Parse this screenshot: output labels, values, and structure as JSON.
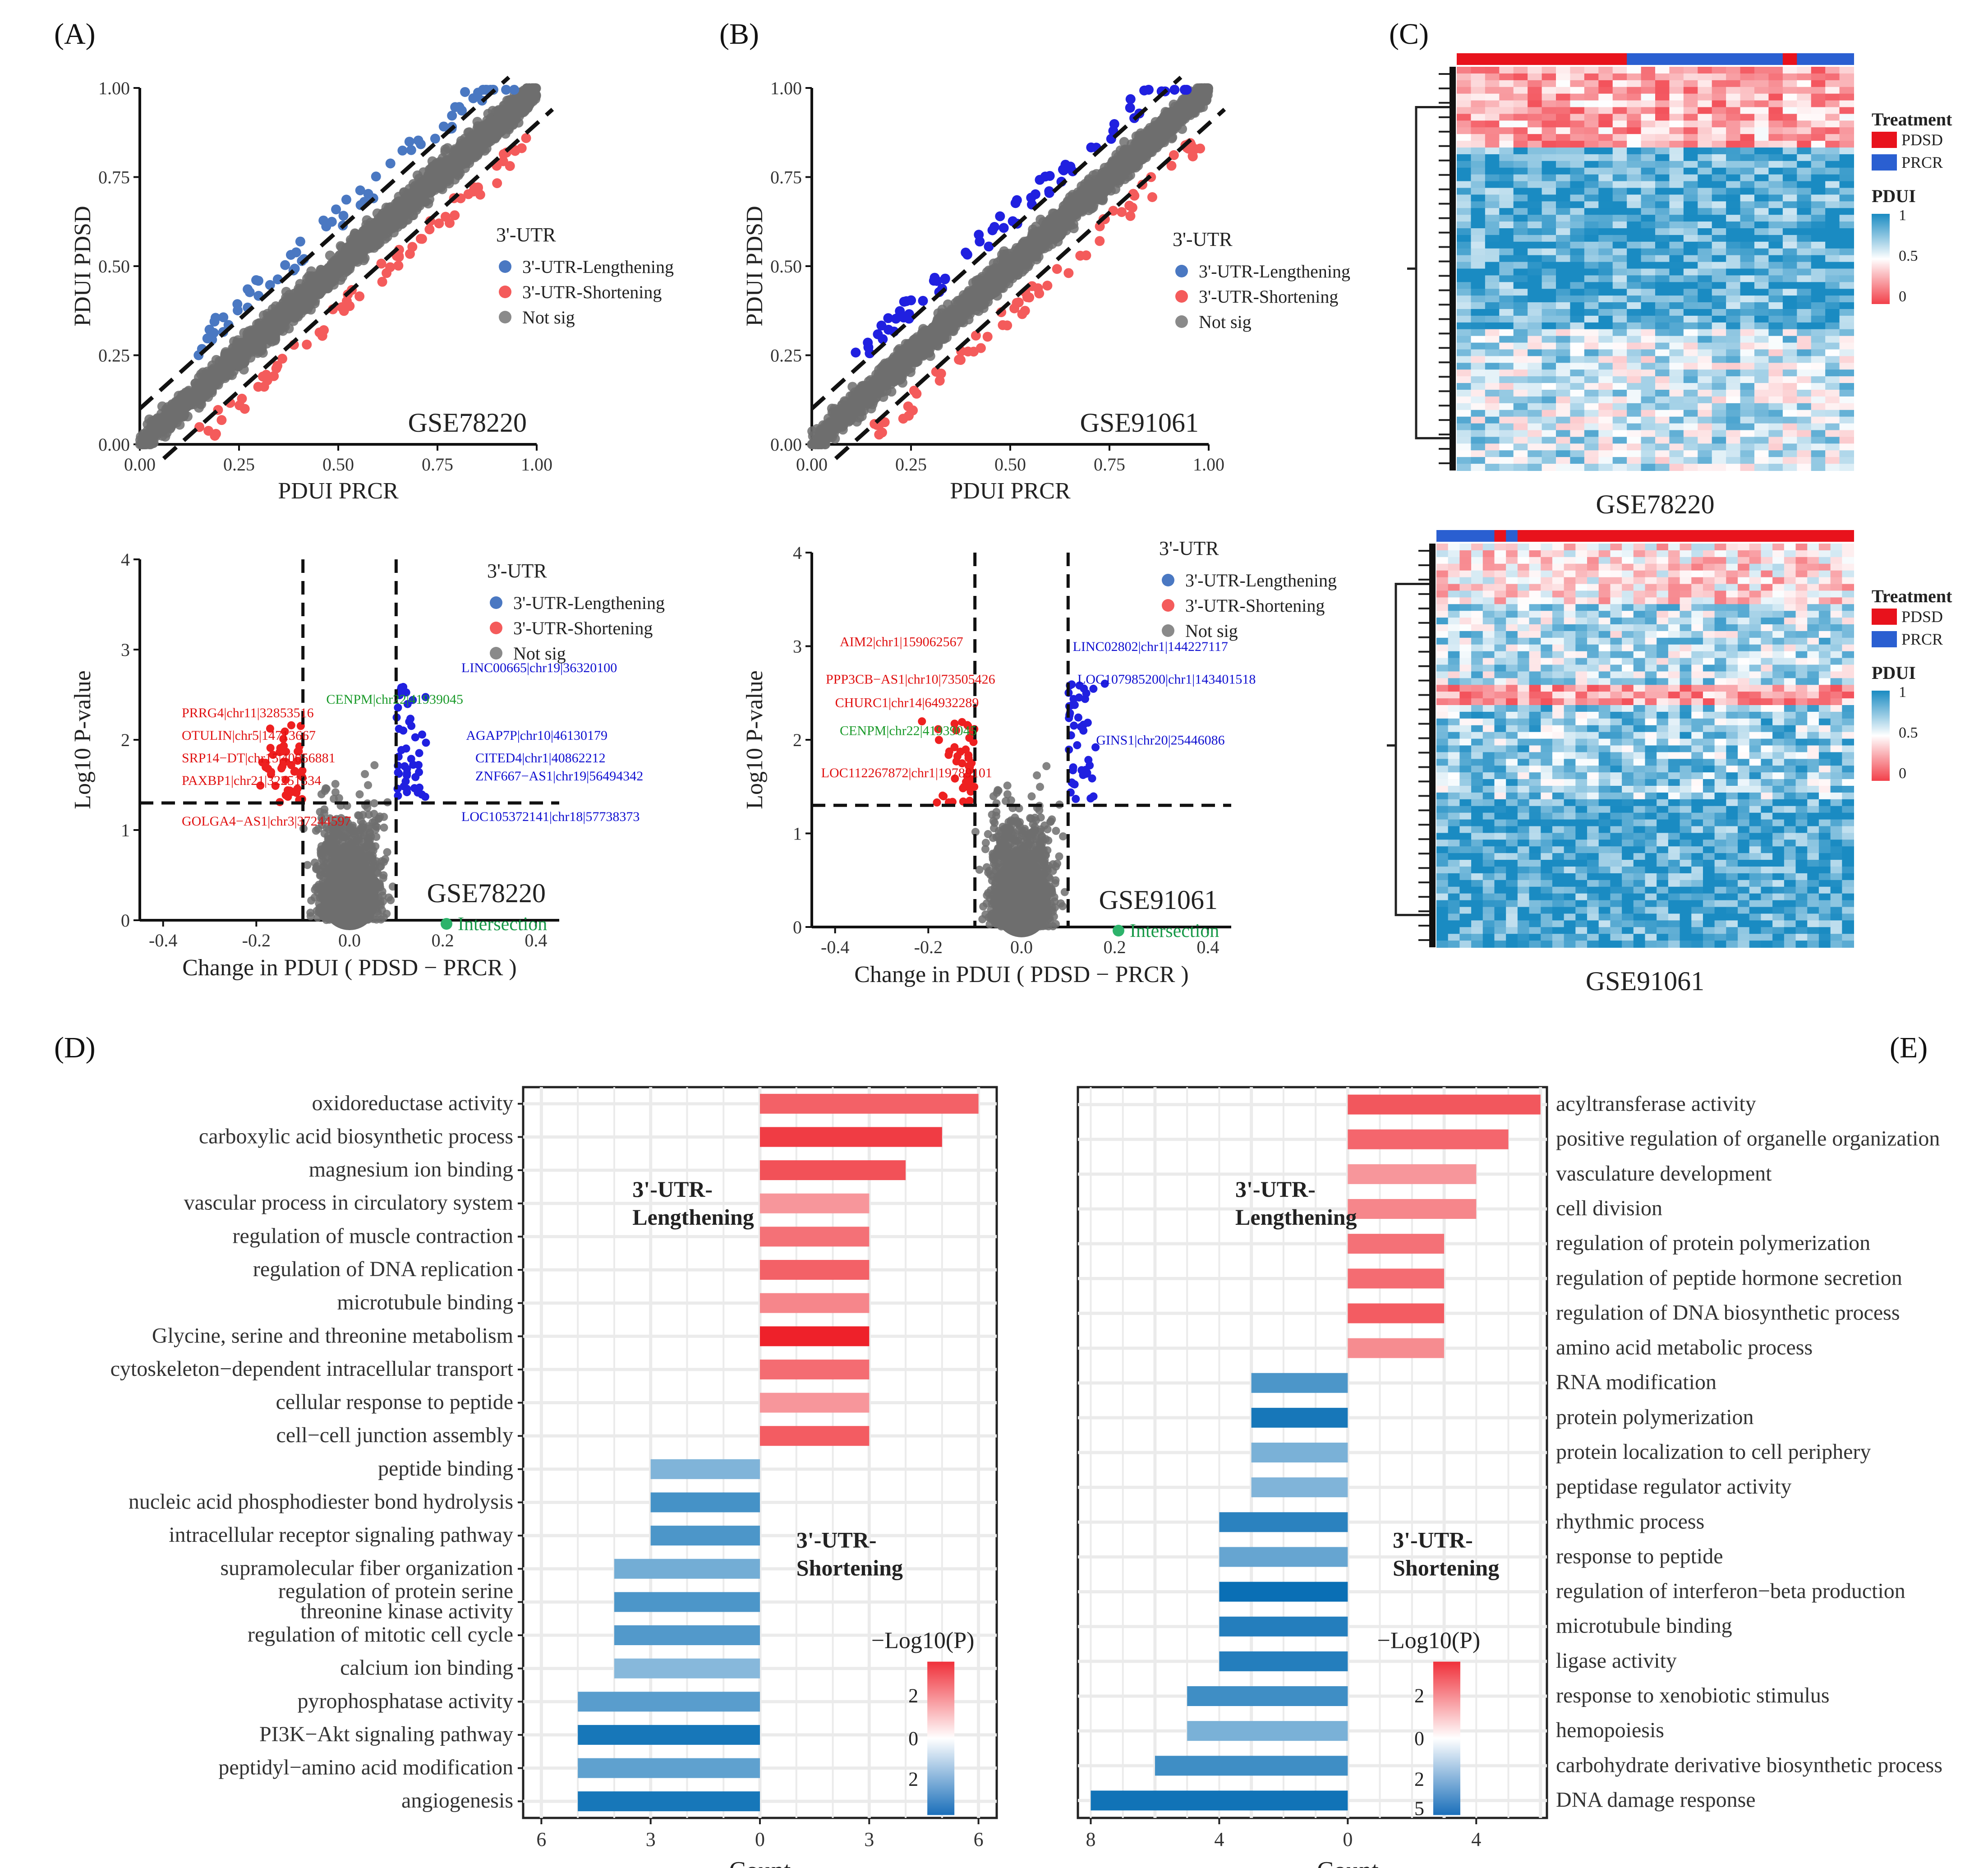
{
  "panel_labels": [
    "(A)",
    "(B)",
    "(C)",
    "(D)",
    "(E)"
  ],
  "colors": {
    "lengthening": "#2b63c9",
    "shortening": "#f45b5b",
    "not_sig": "#6e6e6e",
    "intersection": "#2db36b",
    "heat_high": "#1a8bc2",
    "heat_mid": "#ffffff",
    "heat_low": "#f2404a",
    "pdsd": "#e8121c",
    "prcr": "#2a5fd1"
  },
  "legend": {
    "title": "3'-UTR",
    "items": [
      "3'-UTR-Lengthening",
      "3'-UTR-Shortening",
      "Not sig"
    ],
    "intersection": "Intersection"
  },
  "chart_data": [
    {
      "id": "A-scatter",
      "type": "scatter",
      "title": "GSE78220",
      "xlabel": "PDUI PRCR",
      "ylabel": "PDUI PDSD",
      "xlim": [
        0,
        1
      ],
      "ylim": [
        0,
        1
      ],
      "xticks": [
        "0.00",
        "0.25",
        "0.50",
        "0.75",
        "1.00"
      ],
      "yticks": [
        "0.00",
        "0.25",
        "0.50",
        "0.75",
        "1.00"
      ],
      "thresholds": [
        0.1,
        -0.1
      ]
    },
    {
      "id": "B-scatter",
      "type": "scatter",
      "title": "GSE91061",
      "xlabel": "PDUI PRCR",
      "ylabel": "PDUI PDSD",
      "xlim": [
        0,
        1
      ],
      "ylim": [
        0,
        1
      ],
      "xticks": [
        "0.00",
        "0.25",
        "0.50",
        "0.75",
        "1.00"
      ],
      "yticks": [
        "0.00",
        "0.25",
        "0.50",
        "0.75",
        "1.00"
      ],
      "thresholds": [
        0.1,
        -0.1
      ]
    },
    {
      "id": "A-volcano",
      "type": "scatter",
      "title": "GSE78220",
      "xlabel": "Change in PDUI ( PDSD − PRCR )",
      "ylabel": "Log10 P-value",
      "xlim": [
        -0.45,
        0.45
      ],
      "ylim": [
        0,
        4
      ],
      "xticks": [
        "-0.4",
        "-0.2",
        "0.0",
        "0.2",
        "0.4"
      ],
      "yticks": [
        "0",
        "1",
        "2",
        "3",
        "4"
      ],
      "vlines": [
        -0.1,
        0.1
      ],
      "hline": 1.3,
      "labels": [
        {
          "text": "PRRG4|chr11|32853516",
          "x": -0.36,
          "y": 2.25,
          "group": "shortening"
        },
        {
          "text": "OTULIN|chr5|14713667",
          "x": -0.36,
          "y": 2.0,
          "group": "shortening"
        },
        {
          "text": "SRP14−DT|chr15|40056881",
          "x": -0.36,
          "y": 1.75,
          "group": "shortening"
        },
        {
          "text": "PAXBP1|chr21|32251334",
          "x": -0.36,
          "y": 1.5,
          "group": "shortening"
        },
        {
          "text": "GOLGA4−AS1|chr3|37244597",
          "x": -0.36,
          "y": 1.05,
          "group": "shortening"
        },
        {
          "text": "CENPM|chr22|41939045",
          "x": -0.05,
          "y": 2.4,
          "group": "intersection"
        },
        {
          "text": "LINC00665|chr19|36320100",
          "x": 0.24,
          "y": 2.75,
          "group": "lengthening"
        },
        {
          "text": "AGAP7P|chr10|46130179",
          "x": 0.25,
          "y": 2.0,
          "group": "lengthening"
        },
        {
          "text": "CITED4|chr1|40862212",
          "x": 0.27,
          "y": 1.75,
          "group": "lengthening"
        },
        {
          "text": "ZNF667−AS1|chr19|56494342",
          "x": 0.27,
          "y": 1.55,
          "group": "lengthening"
        },
        {
          "text": "LOC105372141|chr18|57738373",
          "x": 0.24,
          "y": 1.1,
          "group": "lengthening"
        }
      ]
    },
    {
      "id": "B-volcano",
      "type": "scatter",
      "title": "GSE91061",
      "xlabel": "Change in PDUI ( PDSD − PRCR )",
      "ylabel": "Log10 P-value",
      "xlim": [
        -0.45,
        0.45
      ],
      "ylim": [
        0,
        4
      ],
      "xticks": [
        "-0.4",
        "-0.2",
        "0.0",
        "0.2",
        "0.4"
      ],
      "yticks": [
        "0",
        "1",
        "2",
        "3",
        "4"
      ],
      "vlines": [
        -0.1,
        0.1
      ],
      "hline": 1.3,
      "labels": [
        {
          "text": "AIM2|chr1|159062567",
          "x": -0.39,
          "y": 3.0,
          "group": "shortening"
        },
        {
          "text": "PPP3CB−AS1|chr10|73505426",
          "x": -0.42,
          "y": 2.6,
          "group": "shortening"
        },
        {
          "text": "CHURC1|chr14|64932289",
          "x": -0.4,
          "y": 2.35,
          "group": "shortening"
        },
        {
          "text": "CENPM|chr22|41939045",
          "x": -0.39,
          "y": 2.05,
          "group": "intersection"
        },
        {
          "text": "LOC112267872|chr1|19789101",
          "x": -0.43,
          "y": 1.6,
          "group": "shortening"
        },
        {
          "text": "LINC02802|chr1|144227117",
          "x": 0.11,
          "y": 2.95,
          "group": "lengthening"
        },
        {
          "text": "LOC107985200|chr1|143401518",
          "x": 0.12,
          "y": 2.6,
          "group": "lengthening"
        },
        {
          "text": "GINS1|chr20|25446086",
          "x": 0.16,
          "y": 1.95,
          "group": "lengthening"
        }
      ]
    },
    {
      "id": "C1-heatmap",
      "type": "heatmap",
      "title": "GSE78220",
      "legend_treatment": {
        "title": "Treatment",
        "items": [
          "PDSD",
          "PRCR"
        ]
      },
      "legend_pdui": {
        "title": "PDUI",
        "ticks": [
          "1",
          "0.5",
          "0"
        ]
      },
      "col_annotation": [
        "PDSD",
        "PDSD",
        "PDSD",
        "PDSD",
        "PDSD",
        "PDSD",
        "PDSD",
        "PDSD",
        "PDSD",
        "PDSD",
        "PDSD",
        "PDSD",
        "PRCR",
        "PRCR",
        "PRCR",
        "PRCR",
        "PRCR",
        "PRCR",
        "PRCR",
        "PRCR",
        "PRCR",
        "PRCR",
        "PRCR",
        "PDSD",
        "PRCR",
        "PRCR",
        "PRCR",
        "PRCR"
      ]
    },
    {
      "id": "C2-heatmap",
      "type": "heatmap",
      "title": "GSE91061",
      "legend_treatment": {
        "title": "Treatment",
        "items": [
          "PDSD",
          "PRCR"
        ]
      },
      "legend_pdui": {
        "title": "PDUI",
        "ticks": [
          "1",
          "0.5",
          "0"
        ]
      },
      "col_annotation": [
        "PRCR",
        "PRCR",
        "PRCR",
        "PRCR",
        "PRCR",
        "PDSD",
        "PRCR",
        "PDSD",
        "PDSD",
        "PDSD",
        "PDSD",
        "PDSD",
        "PDSD",
        "PDSD",
        "PDSD",
        "PDSD",
        "PDSD",
        "PDSD",
        "PDSD",
        "PDSD",
        "PDSD",
        "PDSD",
        "PDSD",
        "PDSD",
        "PDSD",
        "PDSD",
        "PDSD",
        "PDSD",
        "PDSD",
        "PDSD",
        "PDSD",
        "PDSD",
        "PDSD",
        "PDSD",
        "PDSD",
        "PDSD"
      ]
    },
    {
      "id": "D-bar",
      "type": "bar",
      "xlabel": "Count",
      "xticks": [
        "6",
        "3",
        "0",
        "3",
        "6"
      ],
      "xlim": [
        -6.5,
        6.5
      ],
      "group_labels": {
        "up": [
          "3'-UTR-",
          "Lengthening"
        ],
        "down": [
          "3'-UTR-",
          "Shortening"
        ]
      },
      "colorbar": {
        "title": "−Log10(P)",
        "ticks_up": [
          "2"
        ],
        "mid": "0",
        "ticks_down": [
          "2"
        ]
      },
      "categories": [
        "oxidoreductase activity",
        "carboxylic acid biosynthetic process",
        "magnesium ion binding",
        "vascular process in circulatory system",
        "regulation of muscle contraction",
        "regulation of DNA replication",
        "microtubule binding",
        "Glycine, serine and threonine metabolism",
        "cytoskeleton−dependent intracellular transport",
        "cellular response to peptide",
        "cell−cell junction assembly",
        "peptide binding",
        "nucleic acid phosphodiester bond hydrolysis",
        "intracellular receptor signaling pathway",
        "supramolecular fiber organization",
        "regulation of protein serine\nthreonine kinase activity",
        "regulation of mitotic cell cycle",
        "calcium ion binding",
        "pyrophosphatase activity",
        "PI3K−Akt signaling pathway",
        "peptidyl−amino acid modification",
        "angiogenesis"
      ],
      "values": [
        6,
        5,
        4,
        3,
        3,
        3,
        3,
        3,
        3,
        3,
        3,
        -3,
        -3,
        -3,
        -4,
        -4,
        -4,
        -4,
        -5,
        -5,
        -5,
        -5
      ],
      "log10p": [
        1.9,
        2.6,
        2.2,
        0.9,
        1.6,
        1.9,
        1.2,
        3.1,
        1.7,
        0.9,
        2.0,
        -1.0,
        -1.9,
        -1.8,
        -1.2,
        -1.8,
        -1.7,
        -0.9,
        -1.6,
        -2.6,
        -1.5,
        -2.6
      ]
    },
    {
      "id": "E-bar",
      "type": "bar",
      "xlabel": "Count",
      "xticks": [
        "8",
        "4",
        "0",
        "4"
      ],
      "xlim": [
        -8.4,
        6.2
      ],
      "group_labels": {
        "up": [
          "3'-UTR-",
          "Lengthening"
        ],
        "down": [
          "3'-UTR-",
          "Shortening"
        ]
      },
      "colorbar": {
        "title": "−Log10(P)",
        "ticks_up": [
          "2"
        ],
        "mid": "0",
        "ticks_down": [
          "2",
          "5"
        ]
      },
      "categories": [
        "acyltransferase activity",
        "positive regulation of organelle organization",
        "vasculature development",
        "cell division",
        "regulation of protein polymerization",
        "regulation of peptide hormone secretion",
        "regulation of DNA biosynthetic process",
        "amino acid metabolic process",
        "RNA modification",
        "protein polymerization",
        "protein localization to cell periphery",
        "peptidase regulator activity",
        "rhythmic process",
        "response to peptide",
        "regulation of interferon−beta production",
        "microtubule binding",
        "ligase activity",
        "response to xenobiotic stimulus",
        "hemopoiesis",
        "carbohydrate derivative biosynthetic process",
        "DNA damage response"
      ],
      "values": [
        6,
        5,
        4,
        4,
        3,
        3,
        3,
        3,
        -3,
        -3,
        -3,
        -3,
        -4,
        -4,
        -4,
        -4,
        -4,
        -5,
        -5,
        -6,
        -8
      ],
      "log10p": [
        2.1,
        1.8,
        0.9,
        1.2,
        1.6,
        1.7,
        2.0,
        1.1,
        -1.8,
        -2.6,
        -1.1,
        -1.0,
        -2.3,
        -1.4,
        -5.0,
        -2.4,
        -2.4,
        -2.0,
        -1.1,
        -2.0,
        -2.7
      ]
    }
  ]
}
